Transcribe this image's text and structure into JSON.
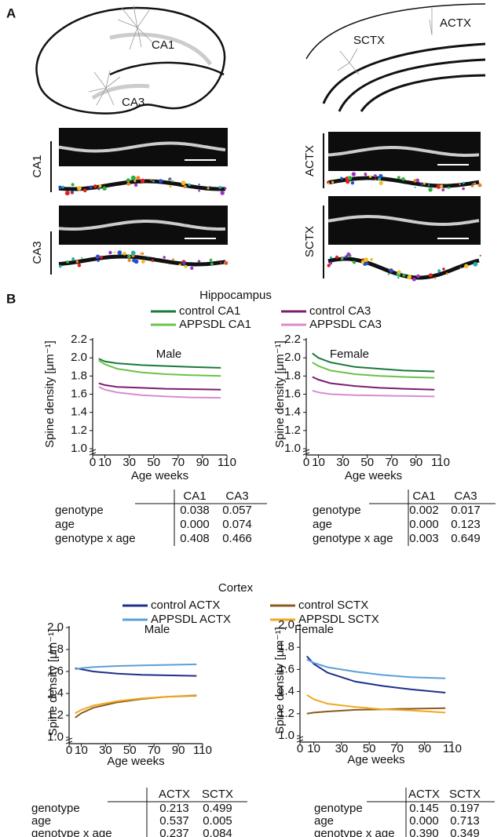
{
  "panel_a": {
    "label": "A",
    "hippocampus_labels": [
      "CA1",
      "CA3"
    ],
    "cortex_labels": [
      "ACTX",
      "SCTX"
    ],
    "image_labels": [
      "CA1",
      "CA3",
      "ACTX",
      "SCTX"
    ]
  },
  "panel_b": {
    "label": "B",
    "groups": [
      {
        "title": "Hippocampus"
      },
      {
        "title": "Cortex"
      }
    ]
  },
  "chart_data": [
    {
      "type": "line",
      "title": "Male",
      "xlabel": "Age weeks",
      "ylabel": "Spine density [μm⁻¹]",
      "x": [
        5,
        10,
        20,
        40,
        60,
        80,
        105
      ],
      "xlim": [
        0,
        110
      ],
      "xticks": [
        0,
        10,
        30,
        50,
        70,
        90,
        110
      ],
      "ylim": [
        1.0,
        2.2
      ],
      "yticks": [
        {
          "value": 1.0,
          "label": "1.0"
        },
        {
          "value": 1.2,
          "label": "1.2"
        },
        {
          "value": 1.4,
          "label": "1.4"
        },
        {
          "value": 1.6,
          "label": "1.6"
        },
        {
          "value": 1.8,
          "label": "1.8"
        },
        {
          "value": 2.0,
          "label": "2.0"
        },
        {
          "value": 2.2,
          "label": "2.2"
        }
      ],
      "series": [
        {
          "name": "control CA1",
          "color": "#1a7a3a",
          "values": [
            1.99,
            1.96,
            1.94,
            1.92,
            1.91,
            1.9,
            1.89
          ]
        },
        {
          "name": "APPSDL CA1",
          "color": "#6cc24a",
          "values": [
            1.97,
            1.93,
            1.88,
            1.84,
            1.82,
            1.81,
            1.8
          ]
        },
        {
          "name": "control CA3",
          "color": "#7a1f6e",
          "values": [
            1.72,
            1.7,
            1.68,
            1.67,
            1.66,
            1.655,
            1.65
          ]
        },
        {
          "name": "APPSDL CA3",
          "color": "#d98ccc",
          "values": [
            1.68,
            1.65,
            1.62,
            1.59,
            1.575,
            1.565,
            1.56
          ]
        }
      ]
    },
    {
      "type": "line",
      "title": "Female",
      "xlabel": "Age weeks",
      "ylabel": "Spine density [μm⁻¹]",
      "x": [
        5,
        10,
        20,
        40,
        60,
        80,
        105
      ],
      "xlim": [
        0,
        110
      ],
      "xticks": [
        0,
        10,
        30,
        50,
        70,
        90,
        110
      ],
      "ylim": [
        1.0,
        2.2
      ],
      "yticks": [
        {
          "value": 1.0,
          "label": "1.0"
        },
        {
          "value": 1.2,
          "label": "1.2"
        },
        {
          "value": 1.4,
          "label": "1.4"
        },
        {
          "value": 1.6,
          "label": "1.6"
        },
        {
          "value": 1.8,
          "label": "1.8"
        },
        {
          "value": 2.0,
          "label": "2.0"
        },
        {
          "value": 2.2,
          "label": "2.2"
        }
      ],
      "series": [
        {
          "name": "control CA1",
          "color": "#1a7a3a",
          "values": [
            2.05,
            2.0,
            1.95,
            1.9,
            1.88,
            1.86,
            1.85
          ]
        },
        {
          "name": "APPSDL CA1",
          "color": "#6cc24a",
          "values": [
            1.95,
            1.91,
            1.86,
            1.82,
            1.8,
            1.79,
            1.78
          ]
        },
        {
          "name": "control CA3",
          "color": "#7a1f6e",
          "values": [
            1.79,
            1.76,
            1.72,
            1.69,
            1.67,
            1.66,
            1.65
          ]
        },
        {
          "name": "APPSDL CA3",
          "color": "#d98ccc",
          "values": [
            1.64,
            1.62,
            1.6,
            1.59,
            1.585,
            1.58,
            1.575
          ]
        }
      ]
    },
    {
      "type": "line",
      "title": "Male",
      "xlabel": "Age weeks",
      "ylabel": "Spine density [μm⁻¹]",
      "x": [
        5,
        10,
        20,
        40,
        60,
        80,
        105
      ],
      "xlim": [
        0,
        110
      ],
      "xticks": [
        0,
        10,
        30,
        50,
        70,
        90,
        110
      ],
      "ylim": [
        1.0,
        2.0
      ],
      "yticks": [
        {
          "value": 1.0,
          "label": "1.0"
        },
        {
          "value": 1.2,
          "label": "1.2"
        },
        {
          "value": 1.4,
          "label": "1.4"
        },
        {
          "value": 1.6,
          "label": "1.6"
        },
        {
          "value": 1.8,
          "label": "1.8"
        },
        {
          "value": 2.0,
          "label": "2.0"
        }
      ],
      "series": [
        {
          "name": "control ACTX",
          "color": "#1f2f8a",
          "values": [
            1.63,
            1.62,
            1.6,
            1.58,
            1.57,
            1.565,
            1.56
          ]
        },
        {
          "name": "APPSDL ACTX",
          "color": "#5aa0d8",
          "values": [
            1.62,
            1.63,
            1.64,
            1.65,
            1.655,
            1.66,
            1.665
          ]
        },
        {
          "name": "control SCTX",
          "color": "#8a5a1e",
          "values": [
            1.18,
            1.22,
            1.27,
            1.32,
            1.35,
            1.37,
            1.38
          ]
        },
        {
          "name": "APPSDL SCTX",
          "color": "#f0a820",
          "values": [
            1.22,
            1.25,
            1.29,
            1.33,
            1.355,
            1.37,
            1.385
          ]
        }
      ]
    },
    {
      "type": "line",
      "title": "Female",
      "xlabel": "Age weeks",
      "ylabel": "Spine density [μm⁻¹]",
      "x": [
        5,
        10,
        20,
        40,
        60,
        80,
        105
      ],
      "xlim": [
        0,
        110
      ],
      "xticks": [
        0,
        10,
        30,
        50,
        70,
        90,
        110
      ],
      "ylim": [
        1.0,
        2.0
      ],
      "yticks": [
        {
          "value": 1.0,
          "label": "1.0"
        },
        {
          "value": 1.2,
          "label": "1.2"
        },
        {
          "value": 1.4,
          "label": "1.4"
        },
        {
          "value": 1.6,
          "label": "1.6"
        },
        {
          "value": 1.8,
          "label": "1.8"
        },
        {
          "value": 2.0,
          "label": "2.0"
        }
      ],
      "series": [
        {
          "name": "control ACTX",
          "color": "#1f2f8a",
          "values": [
            1.72,
            1.65,
            1.57,
            1.49,
            1.45,
            1.42,
            1.39
          ]
        },
        {
          "name": "APPSDL ACTX",
          "color": "#5aa0d8",
          "values": [
            1.69,
            1.66,
            1.62,
            1.58,
            1.55,
            1.53,
            1.52
          ]
        },
        {
          "name": "control SCTX",
          "color": "#8a5a1e",
          "values": [
            1.2,
            1.21,
            1.22,
            1.235,
            1.24,
            1.245,
            1.25
          ]
        },
        {
          "name": "APPSDL SCTX",
          "color": "#f0a820",
          "values": [
            1.37,
            1.33,
            1.29,
            1.26,
            1.24,
            1.23,
            1.21
          ]
        }
      ]
    }
  ],
  "tables": [
    {
      "columns": [
        "CA1",
        "CA3"
      ],
      "rows": [
        {
          "label": "genotype",
          "values": [
            "0.038",
            "0.057"
          ]
        },
        {
          "label": "age",
          "values": [
            "0.000",
            "0.074"
          ]
        },
        {
          "label": "genotype x age",
          "values": [
            "0.408",
            "0.466"
          ]
        }
      ]
    },
    {
      "columns": [
        "CA1",
        "CA3"
      ],
      "rows": [
        {
          "label": "genotype",
          "values": [
            "0.002",
            "0.017"
          ]
        },
        {
          "label": "age",
          "values": [
            "0.000",
            "0.123"
          ]
        },
        {
          "label": "genotype x age",
          "values": [
            "0.003",
            "0.649"
          ]
        }
      ]
    },
    {
      "columns": [
        "ACTX",
        "SCTX"
      ],
      "rows": [
        {
          "label": "genotype",
          "values": [
            "0.213",
            "0.499"
          ]
        },
        {
          "label": "age",
          "values": [
            "0.537",
            "0.005"
          ]
        },
        {
          "label": "genotype x age",
          "values": [
            "0.237",
            "0.084"
          ]
        }
      ]
    },
    {
      "columns": [
        "ACTX",
        "SCTX"
      ],
      "rows": [
        {
          "label": "genotype",
          "values": [
            "0.145",
            "0.197"
          ]
        },
        {
          "label": "age",
          "values": [
            "0.000",
            "0.713"
          ]
        },
        {
          "label": "genotype x age",
          "values": [
            "0.390",
            "0.349"
          ]
        }
      ]
    }
  ]
}
